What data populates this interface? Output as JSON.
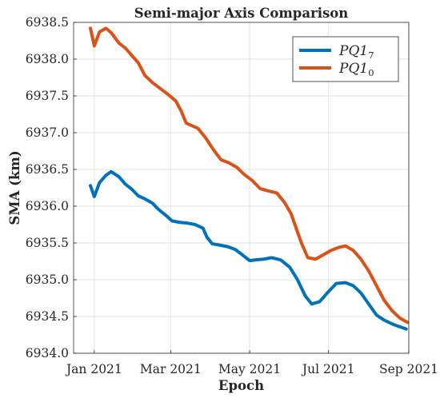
{
  "chart_data": {
    "type": "line",
    "title": "Semi-major Axis Comparison",
    "xlabel": "Epoch",
    "ylabel": "SMA (km)",
    "x_ticks": [
      {
        "label": "Jan 2021",
        "date": "2021-01-01"
      },
      {
        "label": "Mar 2021",
        "date": "2021-03-01"
      },
      {
        "label": "May 2021",
        "date": "2021-05-01"
      },
      {
        "label": "Jul 2021",
        "date": "2021-07-01"
      },
      {
        "label": "Sep 2021",
        "date": "2021-09-01"
      }
    ],
    "xlim": [
      "2020-12-16",
      "2021-09-01"
    ],
    "ylim": [
      6934.0,
      6938.5
    ],
    "y_ticks": [
      "6934.0",
      "6934.5",
      "6935.0",
      "6935.5",
      "6936.0",
      "6936.5",
      "6937.0",
      "6937.5",
      "6938.0",
      "6938.5"
    ],
    "grid": true,
    "legend_position": "top-right",
    "series": [
      {
        "name": "PQ1",
        "subscript": "7",
        "color": "#0072BD",
        "points": [
          [
            "2020-12-29",
            6936.28
          ],
          [
            "2021-01-01",
            6936.13
          ],
          [
            "2021-01-05",
            6936.32
          ],
          [
            "2021-01-10",
            6936.42
          ],
          [
            "2021-01-14",
            6936.47
          ],
          [
            "2021-01-20",
            6936.4
          ],
          [
            "2021-01-25",
            6936.3
          ],
          [
            "2021-01-30",
            6936.23
          ],
          [
            "2021-02-04",
            6936.14
          ],
          [
            "2021-02-09",
            6936.1
          ],
          [
            "2021-02-15",
            6936.04
          ],
          [
            "2021-02-20",
            6935.95
          ],
          [
            "2021-02-25",
            6935.88
          ],
          [
            "2021-03-02",
            6935.8
          ],
          [
            "2021-03-08",
            6935.78
          ],
          [
            "2021-03-14",
            6935.77
          ],
          [
            "2021-03-20",
            6935.75
          ],
          [
            "2021-03-26",
            6935.7
          ],
          [
            "2021-03-29",
            6935.58
          ],
          [
            "2021-04-02",
            6935.49
          ],
          [
            "2021-04-08",
            6935.47
          ],
          [
            "2021-04-14",
            6935.45
          ],
          [
            "2021-04-20",
            6935.41
          ],
          [
            "2021-04-26",
            6935.33
          ],
          [
            "2021-05-01",
            6935.26
          ],
          [
            "2021-05-06",
            6935.27
          ],
          [
            "2021-05-12",
            6935.28
          ],
          [
            "2021-05-18",
            6935.3
          ],
          [
            "2021-05-25",
            6935.27
          ],
          [
            "2021-06-01",
            6935.17
          ],
          [
            "2021-06-07",
            6935.0
          ],
          [
            "2021-06-13",
            6934.78
          ],
          [
            "2021-06-18",
            6934.67
          ],
          [
            "2021-06-24",
            6934.7
          ],
          [
            "2021-06-30",
            6934.82
          ],
          [
            "2021-07-07",
            6934.95
          ],
          [
            "2021-07-14",
            6934.96
          ],
          [
            "2021-07-20",
            6934.92
          ],
          [
            "2021-07-26",
            6934.82
          ],
          [
            "2021-08-01",
            6934.67
          ],
          [
            "2021-08-07",
            6934.52
          ],
          [
            "2021-08-13",
            6934.45
          ],
          [
            "2021-08-19",
            6934.4
          ],
          [
            "2021-08-25",
            6934.36
          ],
          [
            "2021-08-30",
            6934.33
          ]
        ]
      },
      {
        "name": "PQ1",
        "subscript": "0",
        "color": "#D95319",
        "points": [
          [
            "2020-12-29",
            6938.42
          ],
          [
            "2021-01-01",
            6938.18
          ],
          [
            "2021-01-05",
            6938.37
          ],
          [
            "2021-01-10",
            6938.42
          ],
          [
            "2021-01-14",
            6938.36
          ],
          [
            "2021-01-20",
            6938.22
          ],
          [
            "2021-01-25",
            6938.15
          ],
          [
            "2021-01-30",
            6938.05
          ],
          [
            "2021-02-04",
            6937.95
          ],
          [
            "2021-02-09",
            6937.78
          ],
          [
            "2021-02-15",
            6937.68
          ],
          [
            "2021-02-21",
            6937.6
          ],
          [
            "2021-02-27",
            6937.52
          ],
          [
            "2021-03-05",
            6937.43
          ],
          [
            "2021-03-09",
            6937.3
          ],
          [
            "2021-03-13",
            6937.13
          ],
          [
            "2021-03-18",
            6937.09
          ],
          [
            "2021-03-22",
            6937.06
          ],
          [
            "2021-03-28",
            6936.93
          ],
          [
            "2021-04-03",
            6936.77
          ],
          [
            "2021-04-09",
            6936.63
          ],
          [
            "2021-04-15",
            6936.59
          ],
          [
            "2021-04-21",
            6936.53
          ],
          [
            "2021-04-27",
            6936.43
          ],
          [
            "2021-05-03",
            6936.35
          ],
          [
            "2021-05-09",
            6936.24
          ],
          [
            "2021-05-15",
            6936.21
          ],
          [
            "2021-05-22",
            6936.18
          ],
          [
            "2021-05-28",
            6936.05
          ],
          [
            "2021-06-02",
            6935.9
          ],
          [
            "2021-06-06",
            6935.7
          ],
          [
            "2021-06-10",
            6935.5
          ],
          [
            "2021-06-15",
            6935.3
          ],
          [
            "2021-06-21",
            6935.28
          ],
          [
            "2021-06-27",
            6935.34
          ],
          [
            "2021-07-03",
            6935.4
          ],
          [
            "2021-07-09",
            6935.44
          ],
          [
            "2021-07-14",
            6935.46
          ],
          [
            "2021-07-20",
            6935.4
          ],
          [
            "2021-07-26",
            6935.28
          ],
          [
            "2021-08-01",
            6935.12
          ],
          [
            "2021-08-07",
            6934.92
          ],
          [
            "2021-08-13",
            6934.72
          ],
          [
            "2021-08-19",
            6934.58
          ],
          [
            "2021-08-25",
            6934.48
          ],
          [
            "2021-08-31",
            6934.42
          ]
        ]
      }
    ]
  }
}
